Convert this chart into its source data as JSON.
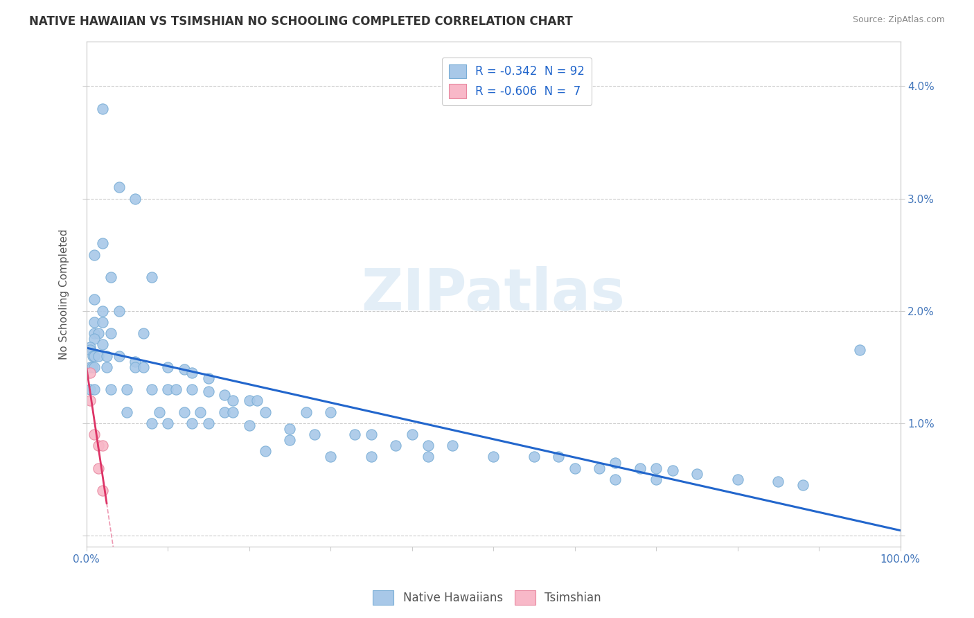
{
  "title": "NATIVE HAWAIIAN VS TSIMSHIAN NO SCHOOLING COMPLETED CORRELATION CHART",
  "source": "Source: ZipAtlas.com",
  "ylabel": "No Schooling Completed",
  "ytick_values": [
    0.0,
    0.01,
    0.02,
    0.03,
    0.04
  ],
  "ytick_labels_right": [
    "",
    "1.0%",
    "2.0%",
    "3.0%",
    "4.0%"
  ],
  "xtick_values": [
    0.0,
    0.1,
    0.2,
    0.3,
    0.4,
    0.5,
    0.6,
    0.7,
    0.8,
    0.9,
    1.0
  ],
  "xtick_labels": [
    "0.0%",
    "",
    "",
    "",
    "",
    "",
    "",
    "",
    "",
    "",
    "100.0%"
  ],
  "xmin": 0.0,
  "xmax": 1.0,
  "ymin": -0.001,
  "ymax": 0.044,
  "watermark": "ZIPatlas",
  "native_hawaiian_color": "#a8c8e8",
  "native_hawaiian_edge": "#7aaed6",
  "tsimshian_color": "#f8b8c8",
  "tsimshian_edge": "#e888a0",
  "trend_line_nh_color": "#2266cc",
  "trend_line_ts_color": "#dd3366",
  "legend_nh_label": "R = -0.342  N = 92",
  "legend_ts_label": "R = -0.606  N =  7",
  "legend_nh_color": "#a8c8e8",
  "legend_ts_color": "#f8b8c8",
  "bottom_legend_nh": "Native Hawaiians",
  "bottom_legend_ts": "Tsimshian",
  "native_hawaiians": [
    [
      0.02,
      0.038
    ],
    [
      0.04,
      0.031
    ],
    [
      0.06,
      0.03
    ],
    [
      0.02,
      0.026
    ],
    [
      0.01,
      0.025
    ],
    [
      0.03,
      0.023
    ],
    [
      0.08,
      0.023
    ],
    [
      0.01,
      0.021
    ],
    [
      0.02,
      0.02
    ],
    [
      0.04,
      0.02
    ],
    [
      0.01,
      0.019
    ],
    [
      0.02,
      0.019
    ],
    [
      0.01,
      0.018
    ],
    [
      0.015,
      0.018
    ],
    [
      0.03,
      0.018
    ],
    [
      0.07,
      0.018
    ],
    [
      0.01,
      0.0175
    ],
    [
      0.02,
      0.017
    ],
    [
      0.005,
      0.0168
    ],
    [
      0.005,
      0.0165
    ],
    [
      0.008,
      0.016
    ],
    [
      0.01,
      0.016
    ],
    [
      0.015,
      0.016
    ],
    [
      0.025,
      0.016
    ],
    [
      0.04,
      0.016
    ],
    [
      0.06,
      0.0155
    ],
    [
      0.005,
      0.015
    ],
    [
      0.007,
      0.015
    ],
    [
      0.01,
      0.015
    ],
    [
      0.025,
      0.015
    ],
    [
      0.06,
      0.015
    ],
    [
      0.07,
      0.015
    ],
    [
      0.1,
      0.015
    ],
    [
      0.12,
      0.0148
    ],
    [
      0.13,
      0.0145
    ],
    [
      0.15,
      0.014
    ],
    [
      0.005,
      0.013
    ],
    [
      0.01,
      0.013
    ],
    [
      0.03,
      0.013
    ],
    [
      0.05,
      0.013
    ],
    [
      0.08,
      0.013
    ],
    [
      0.1,
      0.013
    ],
    [
      0.11,
      0.013
    ],
    [
      0.13,
      0.013
    ],
    [
      0.15,
      0.0128
    ],
    [
      0.17,
      0.0125
    ],
    [
      0.18,
      0.012
    ],
    [
      0.2,
      0.012
    ],
    [
      0.21,
      0.012
    ],
    [
      0.05,
      0.011
    ],
    [
      0.09,
      0.011
    ],
    [
      0.12,
      0.011
    ],
    [
      0.14,
      0.011
    ],
    [
      0.17,
      0.011
    ],
    [
      0.18,
      0.011
    ],
    [
      0.22,
      0.011
    ],
    [
      0.27,
      0.011
    ],
    [
      0.3,
      0.011
    ],
    [
      0.08,
      0.01
    ],
    [
      0.1,
      0.01
    ],
    [
      0.13,
      0.01
    ],
    [
      0.15,
      0.01
    ],
    [
      0.2,
      0.0098
    ],
    [
      0.25,
      0.0095
    ],
    [
      0.28,
      0.009
    ],
    [
      0.33,
      0.009
    ],
    [
      0.35,
      0.009
    ],
    [
      0.4,
      0.009
    ],
    [
      0.25,
      0.0085
    ],
    [
      0.38,
      0.008
    ],
    [
      0.42,
      0.008
    ],
    [
      0.45,
      0.008
    ],
    [
      0.22,
      0.0075
    ],
    [
      0.3,
      0.007
    ],
    [
      0.35,
      0.007
    ],
    [
      0.42,
      0.007
    ],
    [
      0.5,
      0.007
    ],
    [
      0.55,
      0.007
    ],
    [
      0.58,
      0.007
    ],
    [
      0.65,
      0.0065
    ],
    [
      0.6,
      0.006
    ],
    [
      0.63,
      0.006
    ],
    [
      0.68,
      0.006
    ],
    [
      0.7,
      0.006
    ],
    [
      0.72,
      0.0058
    ],
    [
      0.75,
      0.0055
    ],
    [
      0.65,
      0.005
    ],
    [
      0.7,
      0.005
    ],
    [
      0.8,
      0.005
    ],
    [
      0.85,
      0.0048
    ],
    [
      0.88,
      0.0045
    ],
    [
      0.95,
      0.0165
    ]
  ],
  "tsimshian": [
    [
      0.005,
      0.0145
    ],
    [
      0.005,
      0.012
    ],
    [
      0.01,
      0.009
    ],
    [
      0.015,
      0.008
    ],
    [
      0.02,
      0.008
    ],
    [
      0.015,
      0.006
    ],
    [
      0.02,
      0.004
    ]
  ]
}
